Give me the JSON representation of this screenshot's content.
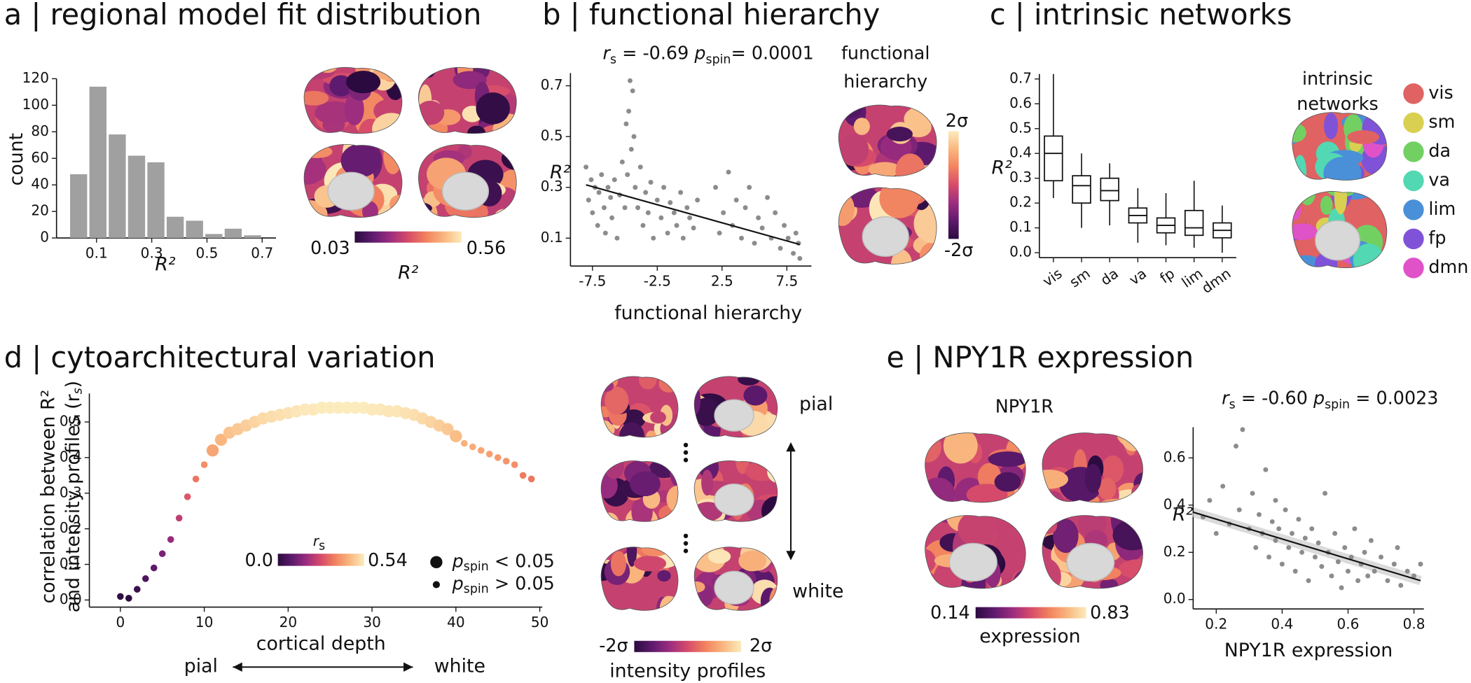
{
  "colormap": [
    "#2b0b3f",
    "#5e1a6e",
    "#9c2d7f",
    "#d64b6a",
    "#f2825f",
    "#f9b77f",
    "#fcebbd"
  ],
  "chart_data": [
    {
      "type": "histogram",
      "title": "a | regional model fit distribution",
      "bins": [
        0.0,
        0.07,
        0.14,
        0.21,
        0.28,
        0.35,
        0.42,
        0.49,
        0.56,
        0.63,
        0.7
      ],
      "values": [
        48,
        114,
        78,
        62,
        57,
        16,
        13,
        3,
        7,
        2
      ],
      "color": "#a0a0a0",
      "xlim": [
        -0.045,
        0.75
      ],
      "xticks": [
        0.1,
        0.3,
        0.5,
        0.7
      ],
      "ylim": [
        0,
        120
      ],
      "yticks": [
        0,
        20,
        40,
        60,
        80,
        100,
        120
      ],
      "xlabel": "R²",
      "ylabel": "count",
      "clim": [
        0.03,
        0.56
      ],
      "colorbar_label": "R²"
    },
    {
      "type": "scatter",
      "title": "b | functional hierarchy",
      "annotation": [
        "r",
        "s",
        " = -0.69 ",
        "p",
        "spin",
        "= 0.0001"
      ],
      "x": [
        -8,
        -7.8,
        -7.6,
        -7.5,
        -7.3,
        -7.1,
        -7,
        -6.8,
        -6.6,
        -6.5,
        -6.3,
        -6.1,
        -6,
        -5.8,
        -5.6,
        -5.4,
        -5.2,
        -5,
        -4.9,
        -4.8,
        -4.7,
        -4.6,
        -4.5,
        -4.4,
        -4.3,
        -4.2,
        -4,
        -3.8,
        -3.6,
        -3.4,
        -3.2,
        -3,
        -2.8,
        -2.5,
        -2.2,
        -2,
        -1.7,
        -1.5,
        -1.2,
        -1,
        -0.7,
        -0.5,
        -0.2,
        0,
        0.3,
        0.6,
        2,
        2.3,
        2.6,
        3,
        3.3,
        3.6,
        4,
        4.3,
        4.6,
        5,
        5.3,
        5.6,
        6,
        6.3,
        6.6,
        7,
        7.3,
        7.6,
        8,
        8.2,
        8.4,
        8.5
      ],
      "values": [
        0.38,
        0.25,
        0.33,
        0.2,
        0.3,
        0.15,
        0.28,
        0.35,
        0.22,
        0.12,
        0.3,
        0.26,
        0.18,
        0.33,
        0.1,
        0.27,
        0.4,
        0.22,
        0.55,
        0.35,
        0.6,
        0.72,
        0.45,
        0.68,
        0.5,
        0.3,
        0.22,
        0.38,
        0.15,
        0.28,
        0.2,
        0.32,
        0.1,
        0.25,
        0.18,
        0.3,
        0.12,
        0.24,
        0.2,
        0.15,
        0.28,
        0.1,
        0.22,
        0.18,
        0.14,
        0.25,
        0.3,
        0.12,
        0.2,
        0.36,
        0.15,
        0.25,
        0.1,
        0.22,
        0.3,
        0.08,
        0.18,
        0.14,
        0.26,
        0.1,
        0.2,
        0.06,
        0.15,
        0.1,
        0.04,
        0.12,
        0.08,
        0.02
      ],
      "color": "#8c8c8c",
      "fit_line": {
        "x": [
          -8,
          8.5
        ],
        "y": [
          0.31,
          0.075
        ]
      },
      "xlim": [
        -9.2,
        9.4
      ],
      "xticks": [
        -7.5,
        -2.5,
        2.5,
        7.5
      ],
      "ylim": [
        -0.01,
        0.75
      ],
      "yticks": [
        0.1,
        0.3,
        0.5,
        0.7
      ],
      "xlabel": "functional hierarchy",
      "ylabel": "R²",
      "map_title": [
        "functional",
        "hierarchy"
      ],
      "clim_labels": [
        "-2σ",
        "2σ"
      ]
    },
    {
      "type": "box",
      "title": "c | intrinsic networks",
      "categories": [
        "vis",
        "sm",
        "da",
        "va",
        "fp",
        "lim",
        "dmn"
      ],
      "stats": [
        {
          "min": 0.22,
          "q1": 0.29,
          "median": 0.4,
          "q3": 0.47,
          "max": 0.72
        },
        {
          "min": 0.1,
          "q1": 0.2,
          "median": 0.27,
          "q3": 0.31,
          "max": 0.4
        },
        {
          "min": 0.11,
          "q1": 0.21,
          "median": 0.25,
          "q3": 0.3,
          "max": 0.36
        },
        {
          "min": 0.04,
          "q1": 0.12,
          "median": 0.15,
          "q3": 0.18,
          "max": 0.26
        },
        {
          "min": 0.03,
          "q1": 0.08,
          "median": 0.11,
          "q3": 0.14,
          "max": 0.24
        },
        {
          "min": 0.02,
          "q1": 0.07,
          "median": 0.1,
          "q3": 0.17,
          "max": 0.29
        },
        {
          "min": 0.0,
          "q1": 0.06,
          "median": 0.09,
          "q3": 0.12,
          "max": 0.19
        }
      ],
      "ylim": [
        -0.02,
        0.72
      ],
      "yticks": [
        {
          "value": 0,
          "label": "0.0"
        },
        0.1,
        0.2,
        0.3,
        0.4,
        0.5,
        0.6,
        0.7
      ],
      "ylabel": "R²",
      "map_title": [
        "intrinsic",
        "networks"
      ],
      "legend": [
        {
          "name": "vis",
          "color": "#e06262"
        },
        {
          "name": "sm",
          "color": "#d9d052"
        },
        {
          "name": "da",
          "color": "#72d062"
        },
        {
          "name": "va",
          "color": "#52d8b2"
        },
        {
          "name": "lim",
          "color": "#4a90d8"
        },
        {
          "name": "fp",
          "color": "#8052d8"
        },
        {
          "name": "dmn",
          "color": "#e052c8"
        }
      ]
    },
    {
      "type": "scatter",
      "title": "d | cytoarchitectural variation",
      "x": [
        0,
        1,
        2,
        3,
        4,
        5,
        6,
        7,
        8,
        9,
        10,
        11,
        12,
        13,
        14,
        15,
        16,
        17,
        18,
        19,
        20,
        21,
        22,
        23,
        24,
        25,
        26,
        27,
        28,
        29,
        30,
        31,
        32,
        33,
        34,
        35,
        36,
        37,
        38,
        39,
        40,
        41,
        42,
        43,
        44,
        45,
        46,
        47,
        48,
        49
      ],
      "values": [
        0.01,
        0.005,
        0.03,
        0.06,
        0.09,
        0.13,
        0.17,
        0.23,
        0.29,
        0.34,
        0.38,
        0.42,
        0.45,
        0.47,
        0.48,
        0.49,
        0.5,
        0.51,
        0.515,
        0.52,
        0.525,
        0.53,
        0.535,
        0.535,
        0.54,
        0.54,
        0.54,
        0.54,
        0.54,
        0.54,
        0.535,
        0.535,
        0.53,
        0.53,
        0.525,
        0.52,
        0.51,
        0.5,
        0.49,
        0.48,
        0.46,
        0.44,
        0.43,
        0.42,
        0.41,
        0.4,
        0.39,
        0.38,
        0.35,
        0.34
      ],
      "significant": [
        false,
        false,
        false,
        false,
        false,
        false,
        false,
        false,
        false,
        false,
        false,
        true,
        true,
        true,
        true,
        true,
        true,
        true,
        true,
        true,
        true,
        true,
        true,
        true,
        true,
        true,
        true,
        true,
        true,
        true,
        true,
        true,
        true,
        true,
        true,
        true,
        true,
        true,
        true,
        true,
        true,
        false,
        false,
        false,
        false,
        false,
        false,
        false,
        false,
        false
      ],
      "clim": [
        {
          "value": 0,
          "label": "0.0"
        },
        0.54
      ],
      "clim_title": [
        "r",
        "s"
      ],
      "legend": [
        [
          "p",
          "spin",
          " < 0.05"
        ],
        [
          "p",
          "spin",
          " > 0.05"
        ]
      ],
      "xlim": [
        -3.7,
        50.3
      ],
      "xticks": [
        0,
        10,
        20,
        30,
        40,
        50
      ],
      "ylim": [
        -0.02,
        0.58
      ],
      "yticks": [
        {
          "value": 0,
          "label": "0.0"
        },
        0.1,
        0.2,
        0.3,
        0.4,
        0.5
      ],
      "xlabel": "cortical depth",
      "ylabel": [
        "correlation between R²",
        "and intensity profiles (r",
        "s",
        ")"
      ],
      "depth_labels": [
        "pial",
        "white"
      ],
      "map_labels": [
        "pial",
        "white"
      ],
      "map_clim_labels": [
        "-2σ",
        "2σ"
      ],
      "map_colorbar_label": "intensity profiles"
    },
    {
      "type": "scatter",
      "title": "e | NPY1R expression",
      "annotation": [
        "r",
        "s",
        " = -0.60 ",
        "p",
        "spin",
        " = 0.0023"
      ],
      "x": [
        0.16,
        0.18,
        0.2,
        0.22,
        0.24,
        0.26,
        0.27,
        0.28,
        0.3,
        0.31,
        0.32,
        0.33,
        0.34,
        0.35,
        0.36,
        0.37,
        0.38,
        0.38,
        0.39,
        0.4,
        0.41,
        0.42,
        0.43,
        0.44,
        0.45,
        0.46,
        0.47,
        0.48,
        0.49,
        0.5,
        0.51,
        0.52,
        0.53,
        0.54,
        0.55,
        0.56,
        0.57,
        0.58,
        0.59,
        0.6,
        0.61,
        0.62,
        0.63,
        0.64,
        0.65,
        0.66,
        0.67,
        0.68,
        0.7,
        0.72,
        0.74,
        0.75,
        0.76,
        0.78,
        0.8,
        0.82
      ],
      "values": [
        0.35,
        0.42,
        0.28,
        0.48,
        0.32,
        0.65,
        0.38,
        0.72,
        0.3,
        0.45,
        0.22,
        0.36,
        0.28,
        0.55,
        0.18,
        0.33,
        0.42,
        0.25,
        0.3,
        0.15,
        0.38,
        0.22,
        0.28,
        0.12,
        0.34,
        0.2,
        0.26,
        0.08,
        0.3,
        0.18,
        0.24,
        0.14,
        0.45,
        0.2,
        0.1,
        0.28,
        0.16,
        0.05,
        0.22,
        0.12,
        0.18,
        0.3,
        0.08,
        0.15,
        0.2,
        0.1,
        0.25,
        0.12,
        0.18,
        0.08,
        0.15,
        0.22,
        0.06,
        0.12,
        0.1,
        0.15
      ],
      "color": "#8c8c8c",
      "fit_line": {
        "x": [
          0.13,
          0.82
        ],
        "y": [
          0.37,
          0.08
        ]
      },
      "xlim": [
        0.13,
        0.83
      ],
      "xticks": [
        0.2,
        0.4,
        0.6,
        0.8
      ],
      "ylim": [
        -0.04,
        0.73
      ],
      "yticks": [
        {
          "value": 0,
          "label": "0.0"
        },
        0.2,
        0.4,
        0.6
      ],
      "xlabel": "NPY1R expression",
      "ylabel": "R²",
      "map_title": "NPY1R",
      "clim": [
        0.14,
        0.83
      ],
      "colorbar_label": "expression"
    }
  ]
}
